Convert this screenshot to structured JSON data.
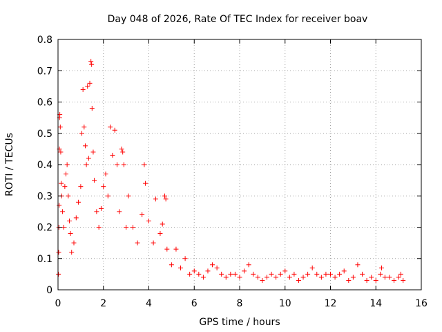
{
  "chart_data": {
    "type": "scatter",
    "title": "Day 048 of 2026, Rate Of TEC Index for receiver boav",
    "xlabel": "GPS time / hours",
    "ylabel": "ROTI / TECUs",
    "xlim": [
      0,
      16
    ],
    "ylim": [
      0,
      0.8
    ],
    "x_ticks": [
      0,
      2,
      4,
      6,
      8,
      10,
      12,
      14,
      16
    ],
    "y_ticks": [
      0,
      0.1,
      0.2,
      0.3,
      0.4,
      0.5,
      0.6,
      0.7,
      0.8
    ],
    "x_tick_labels": [
      "0",
      "2",
      "4",
      "6",
      "8",
      "10",
      "12",
      "14",
      "16"
    ],
    "y_tick_labels": [
      "0",
      "0.1",
      "0.2",
      "0.3",
      "0.4",
      "0.5",
      "0.6",
      "0.7",
      "0.8"
    ],
    "grid": true,
    "marker": "+",
    "color": "#ff0000",
    "series": [
      {
        "name": "ROTI",
        "points": [
          [
            0.02,
            0.05
          ],
          [
            0.03,
            0.12
          ],
          [
            0.04,
            0.2
          ],
          [
            0.05,
            0.27
          ],
          [
            0.06,
            0.45
          ],
          [
            0.07,
            0.55
          ],
          [
            0.08,
            0.56
          ],
          [
            0.1,
            0.52
          ],
          [
            0.12,
            0.44
          ],
          [
            0.14,
            0.34
          ],
          [
            0.16,
            0.3
          ],
          [
            0.2,
            0.25
          ],
          [
            0.25,
            0.2
          ],
          [
            0.3,
            0.33
          ],
          [
            0.35,
            0.37
          ],
          [
            0.4,
            0.4
          ],
          [
            0.45,
            0.3
          ],
          [
            0.5,
            0.22
          ],
          [
            0.55,
            0.18
          ],
          [
            0.6,
            0.12
          ],
          [
            0.7,
            0.15
          ],
          [
            0.8,
            0.23
          ],
          [
            0.9,
            0.28
          ],
          [
            1.0,
            0.33
          ],
          [
            1.05,
            0.5
          ],
          [
            1.1,
            0.64
          ],
          [
            1.15,
            0.52
          ],
          [
            1.2,
            0.46
          ],
          [
            1.25,
            0.4
          ],
          [
            1.3,
            0.65
          ],
          [
            1.35,
            0.42
          ],
          [
            1.4,
            0.66
          ],
          [
            1.45,
            0.73
          ],
          [
            1.48,
            0.72
          ],
          [
            1.5,
            0.58
          ],
          [
            1.55,
            0.44
          ],
          [
            1.6,
            0.35
          ],
          [
            1.7,
            0.25
          ],
          [
            1.8,
            0.2
          ],
          [
            1.9,
            0.26
          ],
          [
            2.0,
            0.33
          ],
          [
            2.1,
            0.37
          ],
          [
            2.2,
            0.3
          ],
          [
            2.3,
            0.52
          ],
          [
            2.4,
            0.43
          ],
          [
            2.5,
            0.51
          ],
          [
            2.6,
            0.4
          ],
          [
            2.7,
            0.25
          ],
          [
            2.8,
            0.45
          ],
          [
            2.85,
            0.44
          ],
          [
            2.9,
            0.4
          ],
          [
            3.0,
            0.2
          ],
          [
            3.1,
            0.3
          ],
          [
            3.3,
            0.2
          ],
          [
            3.5,
            0.15
          ],
          [
            3.7,
            0.24
          ],
          [
            3.8,
            0.4
          ],
          [
            3.85,
            0.34
          ],
          [
            4.0,
            0.22
          ],
          [
            4.2,
            0.15
          ],
          [
            4.3,
            0.29
          ],
          [
            4.5,
            0.18
          ],
          [
            4.6,
            0.21
          ],
          [
            4.7,
            0.3
          ],
          [
            4.75,
            0.29
          ],
          [
            4.8,
            0.13
          ],
          [
            5.0,
            0.08
          ],
          [
            5.2,
            0.13
          ],
          [
            5.4,
            0.07
          ],
          [
            5.6,
            0.1
          ],
          [
            5.8,
            0.05
          ],
          [
            6.0,
            0.06
          ],
          [
            6.2,
            0.05
          ],
          [
            6.4,
            0.04
          ],
          [
            6.6,
            0.06
          ],
          [
            6.8,
            0.08
          ],
          [
            7.0,
            0.07
          ],
          [
            7.2,
            0.05
          ],
          [
            7.4,
            0.04
          ],
          [
            7.6,
            0.05
          ],
          [
            7.8,
            0.05
          ],
          [
            8.0,
            0.04
          ],
          [
            8.2,
            0.06
          ],
          [
            8.4,
            0.08
          ],
          [
            8.6,
            0.05
          ],
          [
            8.8,
            0.04
          ],
          [
            9.0,
            0.03
          ],
          [
            9.2,
            0.04
          ],
          [
            9.4,
            0.05
          ],
          [
            9.6,
            0.04
          ],
          [
            9.8,
            0.05
          ],
          [
            10.0,
            0.06
          ],
          [
            10.2,
            0.04
          ],
          [
            10.4,
            0.05
          ],
          [
            10.6,
            0.03
          ],
          [
            10.8,
            0.04
          ],
          [
            11.0,
            0.05
          ],
          [
            11.2,
            0.07
          ],
          [
            11.4,
            0.05
          ],
          [
            11.6,
            0.04
          ],
          [
            11.8,
            0.05
          ],
          [
            12.0,
            0.05
          ],
          [
            12.2,
            0.04
          ],
          [
            12.4,
            0.05
          ],
          [
            12.6,
            0.06
          ],
          [
            12.8,
            0.03
          ],
          [
            13.0,
            0.04
          ],
          [
            13.2,
            0.08
          ],
          [
            13.4,
            0.05
          ],
          [
            13.6,
            0.03
          ],
          [
            13.8,
            0.04
          ],
          [
            14.0,
            0.03
          ],
          [
            14.2,
            0.05
          ],
          [
            14.25,
            0.07
          ],
          [
            14.4,
            0.04
          ],
          [
            14.6,
            0.04
          ],
          [
            14.8,
            0.03
          ],
          [
            15.0,
            0.04
          ],
          [
            15.1,
            0.05
          ],
          [
            15.2,
            0.03
          ]
        ]
      }
    ]
  }
}
